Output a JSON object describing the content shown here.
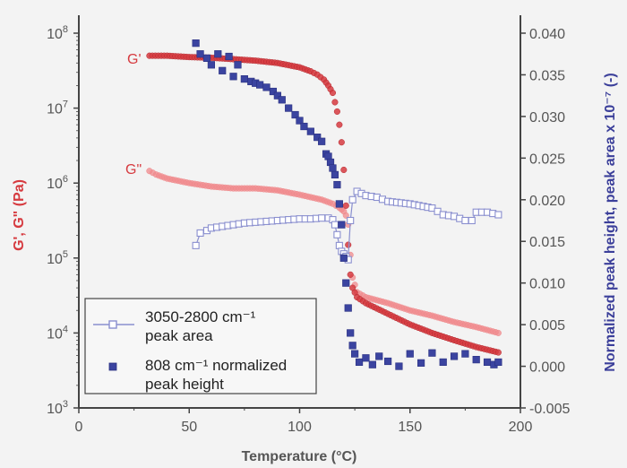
{
  "chart_data": {
    "type": "scatter",
    "xlabel": "Temperature (°C)",
    "ylabel_left": "G', G\" (Pa)",
    "ylabel_right": "Normalized peak height, peak area x 10⁻⁷ (-)",
    "xlim": [
      0,
      200
    ],
    "x_ticks": [
      0,
      50,
      100,
      150,
      200
    ],
    "x_tick_labels": [
      "0",
      "50",
      "100",
      "150",
      "200"
    ],
    "ylim_left_log10": [
      3,
      8
    ],
    "y_left_ticks_exp": [
      3,
      4,
      5,
      6,
      7,
      8
    ],
    "y_left_tick_base": "10",
    "y_left_tick_exps": [
      "3",
      "4",
      "5",
      "6",
      "7",
      "8"
    ],
    "ylim_right": [
      -0.005,
      0.04
    ],
    "y_right_ticks": [
      -0.005,
      0.0,
      0.005,
      0.01,
      0.015,
      0.02,
      0.025,
      0.03,
      0.035,
      0.04
    ],
    "y_right_tick_labels": [
      "-0.005",
      "0.000",
      "0.005",
      "0.010",
      "0.015",
      "0.020",
      "0.025",
      "0.030",
      "0.035",
      "0.040"
    ],
    "colors": {
      "g_prime": "#d63a3f",
      "g_double_prime": "#f08a8c",
      "peak_area": "#8a8fcf",
      "peak_height": "#3b44a0",
      "left_axis_title": "#d63a3f",
      "right_axis_title": "#3b3f9a",
      "axis": "#444444"
    },
    "series_labels": {
      "g_prime": "G'",
      "g_double_prime": "G\""
    },
    "legend": {
      "area_line1": "3050-2800 cm⁻¹",
      "area_line2": "peak area",
      "height_line1": "808 cm⁻¹ normalized",
      "height_line2": "peak height"
    },
    "series": [
      {
        "name": "G'",
        "axis": "left",
        "marker": "circle",
        "points": [
          [
            32,
            50000000
          ],
          [
            40,
            50000000
          ],
          [
            50,
            48000000
          ],
          [
            60,
            47000000
          ],
          [
            70,
            45000000
          ],
          [
            80,
            43000000
          ],
          [
            90,
            40000000
          ],
          [
            100,
            35000000
          ],
          [
            105,
            31000000
          ],
          [
            108,
            28000000
          ],
          [
            111,
            24000000
          ],
          [
            113,
            20000000
          ],
          [
            115,
            16000000
          ],
          [
            116,
            12000000
          ],
          [
            117,
            9000000
          ],
          [
            118,
            6000000
          ],
          [
            119,
            3500000
          ],
          [
            120,
            1500000
          ],
          [
            121,
            500000
          ],
          [
            122,
            150000
          ],
          [
            123,
            60000
          ],
          [
            124,
            40000
          ],
          [
            126,
            30000
          ],
          [
            130,
            25000
          ],
          [
            140,
            18000
          ],
          [
            150,
            13000
          ],
          [
            160,
            10000
          ],
          [
            170,
            8000
          ],
          [
            180,
            6500
          ],
          [
            190,
            5500
          ]
        ]
      },
      {
        "name": "G\"",
        "axis": "left",
        "marker": "circle",
        "points": [
          [
            32,
            1450000
          ],
          [
            35,
            1300000
          ],
          [
            40,
            1150000
          ],
          [
            50,
            1000000
          ],
          [
            60,
            900000
          ],
          [
            70,
            850000
          ],
          [
            80,
            850000
          ],
          [
            90,
            800000
          ],
          [
            100,
            700000
          ],
          [
            110,
            600000
          ],
          [
            115,
            530000
          ],
          [
            118,
            470000
          ],
          [
            120,
            420000
          ],
          [
            121,
            370000
          ],
          [
            122,
            280000
          ],
          [
            123,
            110000
          ],
          [
            124,
            55000
          ],
          [
            126,
            35000
          ],
          [
            130,
            30000
          ],
          [
            140,
            25000
          ],
          [
            150,
            20000
          ],
          [
            160,
            17000
          ],
          [
            170,
            14000
          ],
          [
            180,
            12000
          ],
          [
            190,
            10000
          ]
        ]
      },
      {
        "name": "3050-2800 cm⁻¹ peak area",
        "axis": "right",
        "marker": "open-square",
        "points": [
          [
            53,
            0.0145
          ],
          [
            55,
            0.016
          ],
          [
            58,
            0.0163
          ],
          [
            60,
            0.0166
          ],
          [
            65,
            0.0168
          ],
          [
            70,
            0.017
          ],
          [
            75,
            0.0172
          ],
          [
            80,
            0.0173
          ],
          [
            85,
            0.0174
          ],
          [
            90,
            0.0175
          ],
          [
            95,
            0.0176
          ],
          [
            100,
            0.0177
          ],
          [
            105,
            0.0177
          ],
          [
            110,
            0.0178
          ],
          [
            113,
            0.0178
          ],
          [
            115,
            0.0176
          ],
          [
            116,
            0.017
          ],
          [
            117,
            0.0158
          ],
          [
            118,
            0.0145
          ],
          [
            119,
            0.0138
          ],
          [
            120,
            0.0135
          ],
          [
            121,
            0.0132
          ],
          [
            122,
            0.0128
          ],
          [
            123,
            0.0175
          ],
          [
            124,
            0.02
          ],
          [
            126,
            0.021
          ],
          [
            130,
            0.0205
          ],
          [
            135,
            0.0203
          ],
          [
            140,
            0.0198
          ],
          [
            150,
            0.0195
          ],
          [
            160,
            0.019
          ],
          [
            165,
            0.0182
          ],
          [
            170,
            0.018
          ],
          [
            175,
            0.0175
          ],
          [
            178,
            0.0175
          ],
          [
            180,
            0.0185
          ],
          [
            185,
            0.0185
          ],
          [
            190,
            0.0182
          ]
        ]
      },
      {
        "name": "808 cm⁻¹ normalized peak height",
        "axis": "right",
        "marker": "square",
        "points": [
          [
            53,
            0.0388
          ],
          [
            55,
            0.0375
          ],
          [
            58,
            0.037
          ],
          [
            60,
            0.0362
          ],
          [
            63,
            0.0375
          ],
          [
            65,
            0.0355
          ],
          [
            68,
            0.0372
          ],
          [
            70,
            0.0348
          ],
          [
            72,
            0.0362
          ],
          [
            75,
            0.0345
          ],
          [
            78,
            0.0342
          ],
          [
            80,
            0.034
          ],
          [
            82,
            0.0338
          ],
          [
            85,
            0.0335
          ],
          [
            88,
            0.033
          ],
          [
            90,
            0.0325
          ],
          [
            92,
            0.032
          ],
          [
            95,
            0.031
          ],
          [
            98,
            0.0302
          ],
          [
            100,
            0.0295
          ],
          [
            102,
            0.0288
          ],
          [
            105,
            0.0282
          ],
          [
            108,
            0.0275
          ],
          [
            110,
            0.027
          ],
          [
            112,
            0.0255
          ],
          [
            113,
            0.0252
          ],
          [
            114,
            0.0245
          ],
          [
            115,
            0.0238
          ],
          [
            116,
            0.023
          ],
          [
            117,
            0.0218
          ],
          [
            118,
            0.0195
          ],
          [
            119,
            0.017
          ],
          [
            120,
            0.013
          ],
          [
            121,
            0.01
          ],
          [
            122,
            0.007
          ],
          [
            123,
            0.004
          ],
          [
            124,
            0.0025
          ],
          [
            125,
            0.0015
          ],
          [
            127,
            0.0005
          ],
          [
            130,
            0.001
          ],
          [
            133,
            0.0002
          ],
          [
            136,
            0.0012
          ],
          [
            140,
            0.0006
          ],
          [
            145,
            0.0
          ],
          [
            150,
            0.0015
          ],
          [
            155,
            0.0004
          ],
          [
            160,
            0.0016
          ],
          [
            165,
            0.0005
          ],
          [
            170,
            0.0012
          ],
          [
            175,
            0.0015
          ],
          [
            180,
            0.0008
          ],
          [
            185,
            0.0005
          ],
          [
            188,
            0.0002
          ],
          [
            190,
            0.0005
          ]
        ]
      }
    ]
  }
}
